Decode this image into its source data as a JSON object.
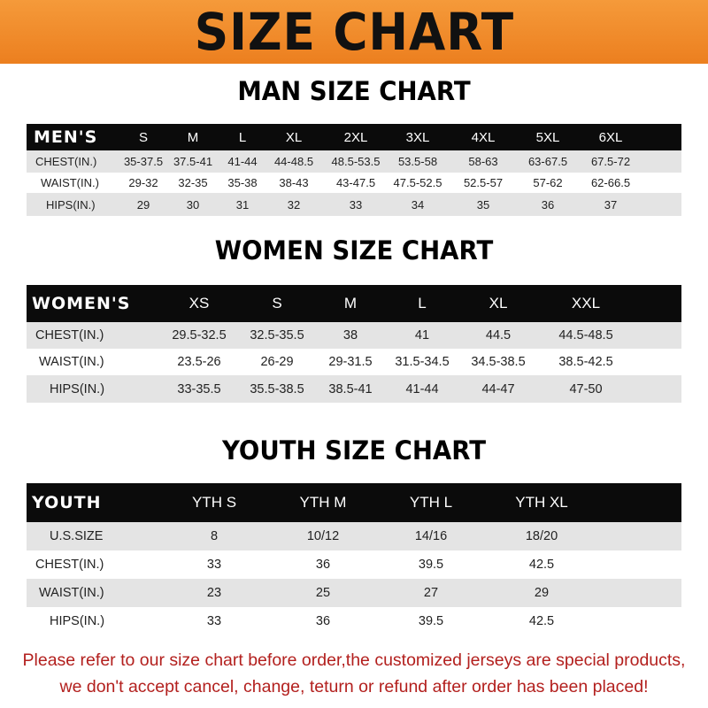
{
  "title": "SIZE CHART",
  "men": {
    "title": "MAN SIZE CHART",
    "header": "MEN'S",
    "sizes": [
      "S",
      "M",
      "L",
      "XL",
      "2XL",
      "3XL",
      "4XL",
      "5XL",
      "6XL"
    ],
    "rows": [
      {
        "label": "CHEST(IN.)",
        "values": [
          "35-37.5",
          "37.5-41",
          "41-44",
          "44-48.5",
          "48.5-53.5",
          "53.5-58",
          "58-63",
          "63-67.5",
          "67.5-72"
        ]
      },
      {
        "label": "WAIST(IN.)",
        "values": [
          "29-32",
          "32-35",
          "35-38",
          "38-43",
          "43-47.5",
          "47.5-52.5",
          "52.5-57",
          "57-62",
          "62-66.5"
        ]
      },
      {
        "label": "HIPS(IN.)",
        "values": [
          "29",
          "30",
          "31",
          "32",
          "33",
          "34",
          "35",
          "36",
          "37"
        ]
      }
    ]
  },
  "women": {
    "title": "WOMEN SIZE CHART",
    "header": "WOMEN'S",
    "sizes": [
      "XS",
      "S",
      "M",
      "L",
      "XL",
      "XXL"
    ],
    "rows": [
      {
        "label": "CHEST(IN.)",
        "values": [
          "29.5-32.5",
          "32.5-35.5",
          "38",
          "41",
          "44.5",
          "44.5-48.5"
        ]
      },
      {
        "label": "WAIST(IN.)",
        "values": [
          "23.5-26",
          "26-29",
          "29-31.5",
          "31.5-34.5",
          "34.5-38.5",
          "38.5-42.5"
        ]
      },
      {
        "label": "HIPS(IN.)",
        "values": [
          "33-35.5",
          "35.5-38.5",
          "38.5-41",
          "41-44",
          "44-47",
          "47-50"
        ]
      }
    ]
  },
  "youth": {
    "title": "YOUTH SIZE CHART",
    "header": "YOUTH",
    "sizes": [
      "YTH S",
      "YTH M",
      "YTH L",
      "YTH XL"
    ],
    "rows": [
      {
        "label": "U.S.SIZE",
        "values": [
          "8",
          "10/12",
          "14/16",
          "18/20"
        ]
      },
      {
        "label": "CHEST(IN.)",
        "values": [
          "33",
          "36",
          "39.5",
          "42.5"
        ]
      },
      {
        "label": "WAIST(IN.)",
        "values": [
          "23",
          "25",
          "27",
          "29"
        ]
      },
      {
        "label": "HIPS(IN.)",
        "values": [
          "33",
          "36",
          "39.5",
          "42.5"
        ]
      }
    ]
  },
  "notice": [
    "Please refer to our size chart before order,the customized jerseys are special products,",
    "we don't accept cancel, change, teturn or refund after order has been placed!"
  ],
  "colors": {
    "banner": "#ef8a2a",
    "header_row": "#0b0b0b",
    "stripe": "#e4e4e4",
    "notice": "#b3201e"
  }
}
